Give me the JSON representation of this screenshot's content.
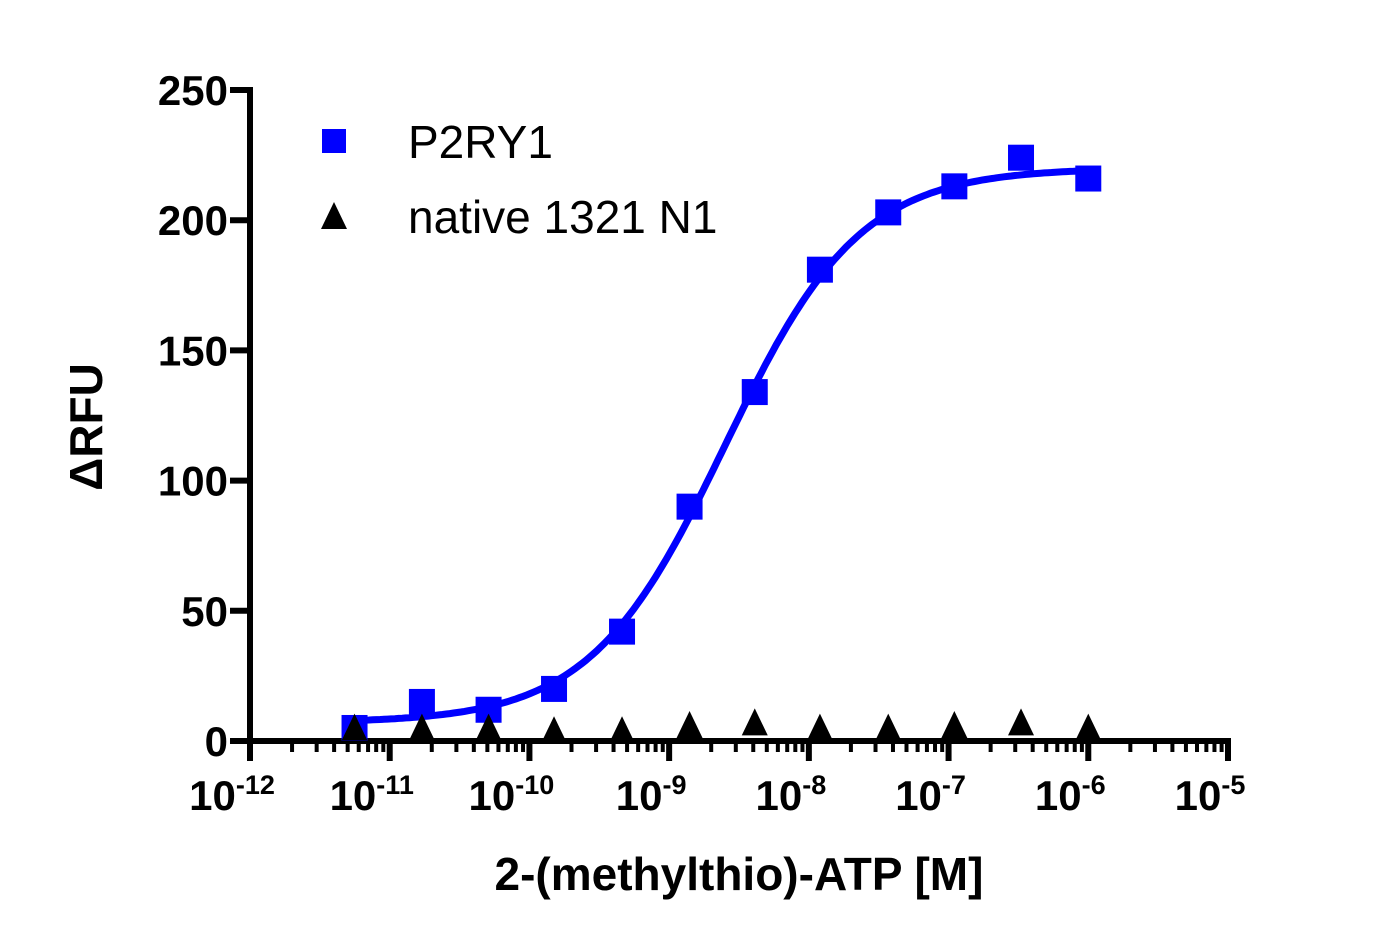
{
  "chart_data": {
    "type": "scatter",
    "title": "",
    "xlabel": "2-(methylthio)-ATP [M]",
    "ylabel": "ΔRFU",
    "x_scale": "log",
    "xlim": [
      1e-12,
      1e-05
    ],
    "ylim": [
      0,
      250
    ],
    "y_ticks": [
      0,
      50,
      100,
      150,
      200,
      250
    ],
    "x_ticks": [
      {
        "base": "10",
        "exp": "-12"
      },
      {
        "base": "10",
        "exp": "-11"
      },
      {
        "base": "10",
        "exp": "-10"
      },
      {
        "base": "10",
        "exp": "-9"
      },
      {
        "base": "10",
        "exp": "-8"
      },
      {
        "base": "10",
        "exp": "-7"
      },
      {
        "base": "10",
        "exp": "-6"
      },
      {
        "base": "10",
        "exp": "-5"
      }
    ],
    "grid": false,
    "legend_placement": "top-left",
    "x": [
      5.6e-12,
      1.7e-11,
      5.1e-11,
      1.5e-10,
      4.6e-10,
      1.4e-09,
      4.1e-09,
      1.2e-08,
      3.7e-08,
      1.1e-07,
      3.3e-07,
      1e-06
    ],
    "series": [
      {
        "name": "P2RY1",
        "marker": "square",
        "color": "#0000ff",
        "values": [
          5,
          15,
          12,
          20,
          42,
          90,
          134,
          181,
          203,
          213,
          224,
          216
        ],
        "fit": {
          "model": "sigmoidal dose-response",
          "bottom": 7,
          "top": 220,
          "logEC50": -8.6,
          "hill": 0.9
        }
      },
      {
        "name": "native 1321 N1",
        "marker": "triangle",
        "color": "#000000",
        "values": [
          4,
          4,
          4,
          3,
          3,
          5,
          6,
          4,
          4,
          5,
          6,
          4
        ]
      }
    ]
  }
}
